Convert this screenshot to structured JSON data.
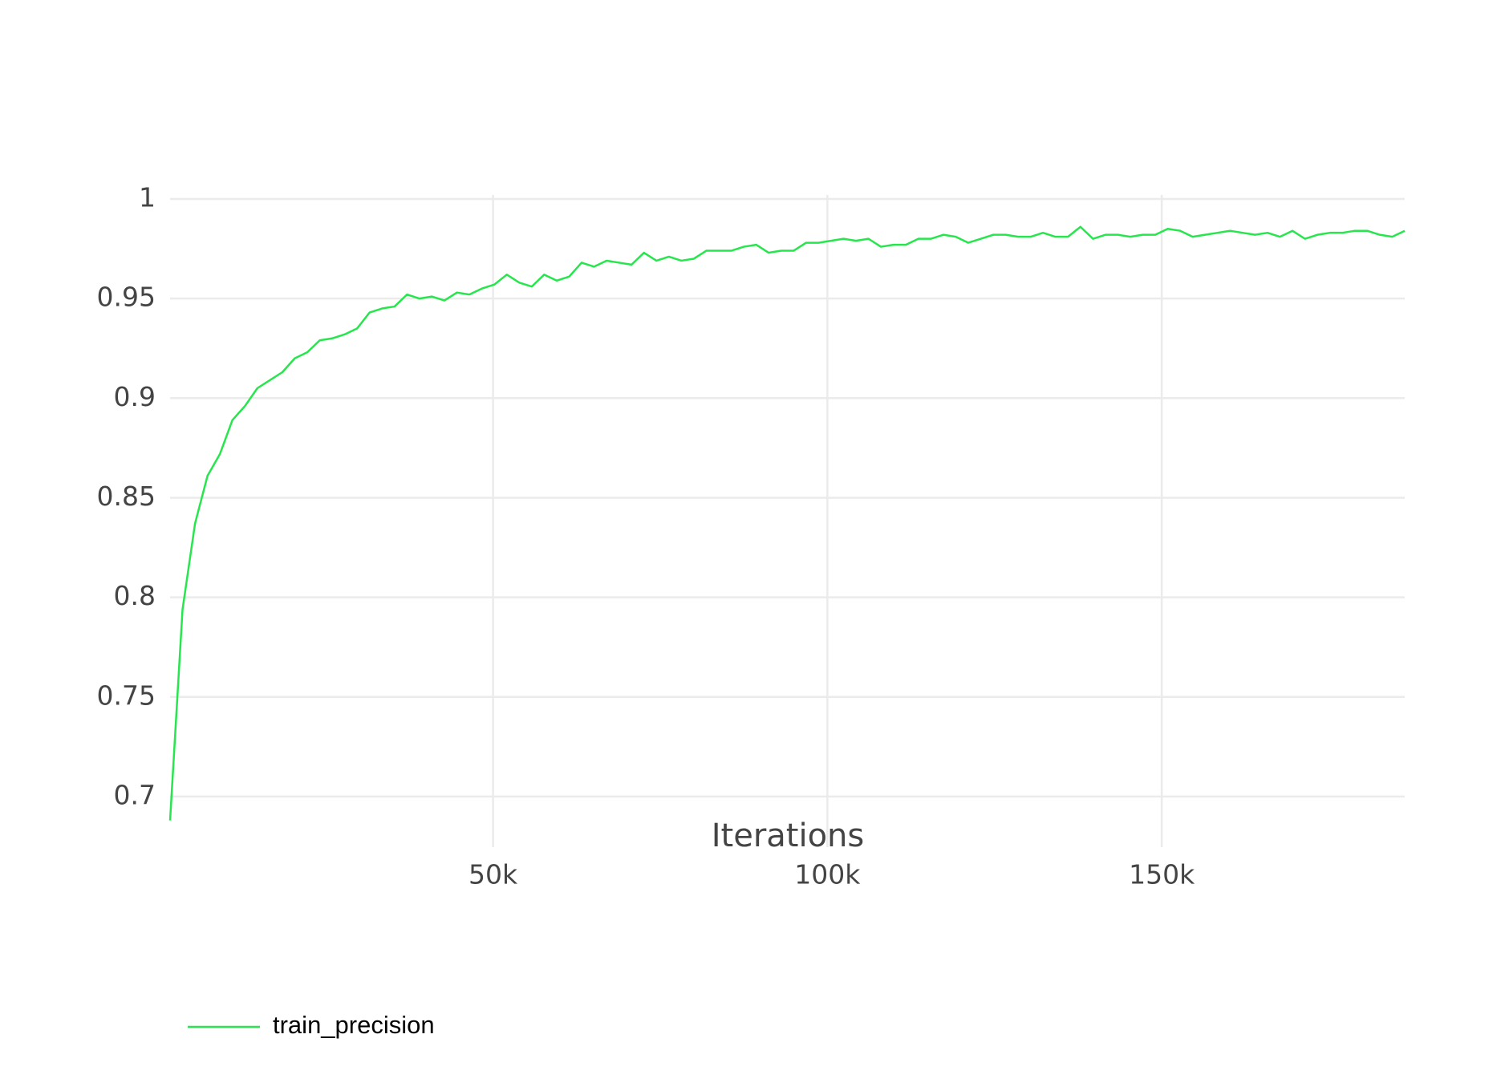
{
  "chart_data": {
    "type": "line",
    "x_label": "Iterations",
    "x": [
      1700,
      3565,
      5430,
      7295,
      9160,
      11025,
      12890,
      14755,
      16620,
      18485,
      20350,
      22215,
      24080,
      25945,
      27810,
      29675,
      31540,
      33405,
      35270,
      37135,
      39000,
      40865,
      42730,
      44595,
      46460,
      48325,
      50190,
      52055,
      53920,
      55785,
      57650,
      59515,
      61380,
      63245,
      65110,
      66975,
      68840,
      70705,
      72570,
      74435,
      76300,
      78165,
      80030,
      81895,
      83760,
      85625,
      87490,
      89355,
      91220,
      93085,
      94950,
      96815,
      98680,
      100545,
      102410,
      104275,
      106140,
      108005,
      109870,
      111735,
      113600,
      115465,
      117330,
      119195,
      121060,
      122925,
      124790,
      126655,
      128520,
      130385,
      132250,
      134115,
      135980,
      137845,
      139710,
      141575,
      143440,
      145305,
      147170,
      149035,
      150900,
      152765,
      154630,
      156495,
      158360,
      160225,
      162090,
      163955,
      165820,
      167685,
      169550,
      171415,
      173280,
      175145,
      177010,
      178875,
      180740,
      182605,
      184470,
      186335
    ],
    "series": [
      {
        "name": "train_precision",
        "color": "#27e64d",
        "values": [
          0.688,
          0.794,
          0.837,
          0.861,
          0.872,
          0.889,
          0.896,
          0.905,
          0.909,
          0.913,
          0.92,
          0.923,
          0.929,
          0.93,
          0.932,
          0.935,
          0.943,
          0.945,
          0.946,
          0.952,
          0.95,
          0.951,
          0.949,
          0.953,
          0.952,
          0.955,
          0.957,
          0.962,
          0.958,
          0.956,
          0.962,
          0.959,
          0.961,
          0.968,
          0.966,
          0.969,
          0.968,
          0.967,
          0.973,
          0.969,
          0.971,
          0.969,
          0.97,
          0.974,
          0.974,
          0.974,
          0.976,
          0.977,
          0.973,
          0.974,
          0.974,
          0.978,
          0.978,
          0.979,
          0.98,
          0.979,
          0.98,
          0.976,
          0.977,
          0.977,
          0.98,
          0.98,
          0.982,
          0.981,
          0.978,
          0.98,
          0.982,
          0.982,
          0.981,
          0.981,
          0.983,
          0.981,
          0.981,
          0.986,
          0.98,
          0.982,
          0.982,
          0.981,
          0.982,
          0.982,
          0.985,
          0.984,
          0.981,
          0.982,
          0.983,
          0.984,
          0.983,
          0.982,
          0.983,
          0.981,
          0.984,
          0.98,
          0.982,
          0.983,
          0.983,
          0.984,
          0.984,
          0.982,
          0.981,
          0.984
        ]
      }
    ],
    "xlim": [
      1700,
      186335
    ],
    "xticks": [
      {
        "value": 50000,
        "label": "50k"
      },
      {
        "value": 100000,
        "label": "100k"
      },
      {
        "value": 150000,
        "label": "150k"
      }
    ],
    "ylim": [
      0.6746,
      1.002
    ],
    "yticks": [
      0.7,
      0.75,
      0.8,
      0.85,
      0.9,
      0.95,
      1
    ],
    "grid": true,
    "legend": "bottom-left"
  }
}
